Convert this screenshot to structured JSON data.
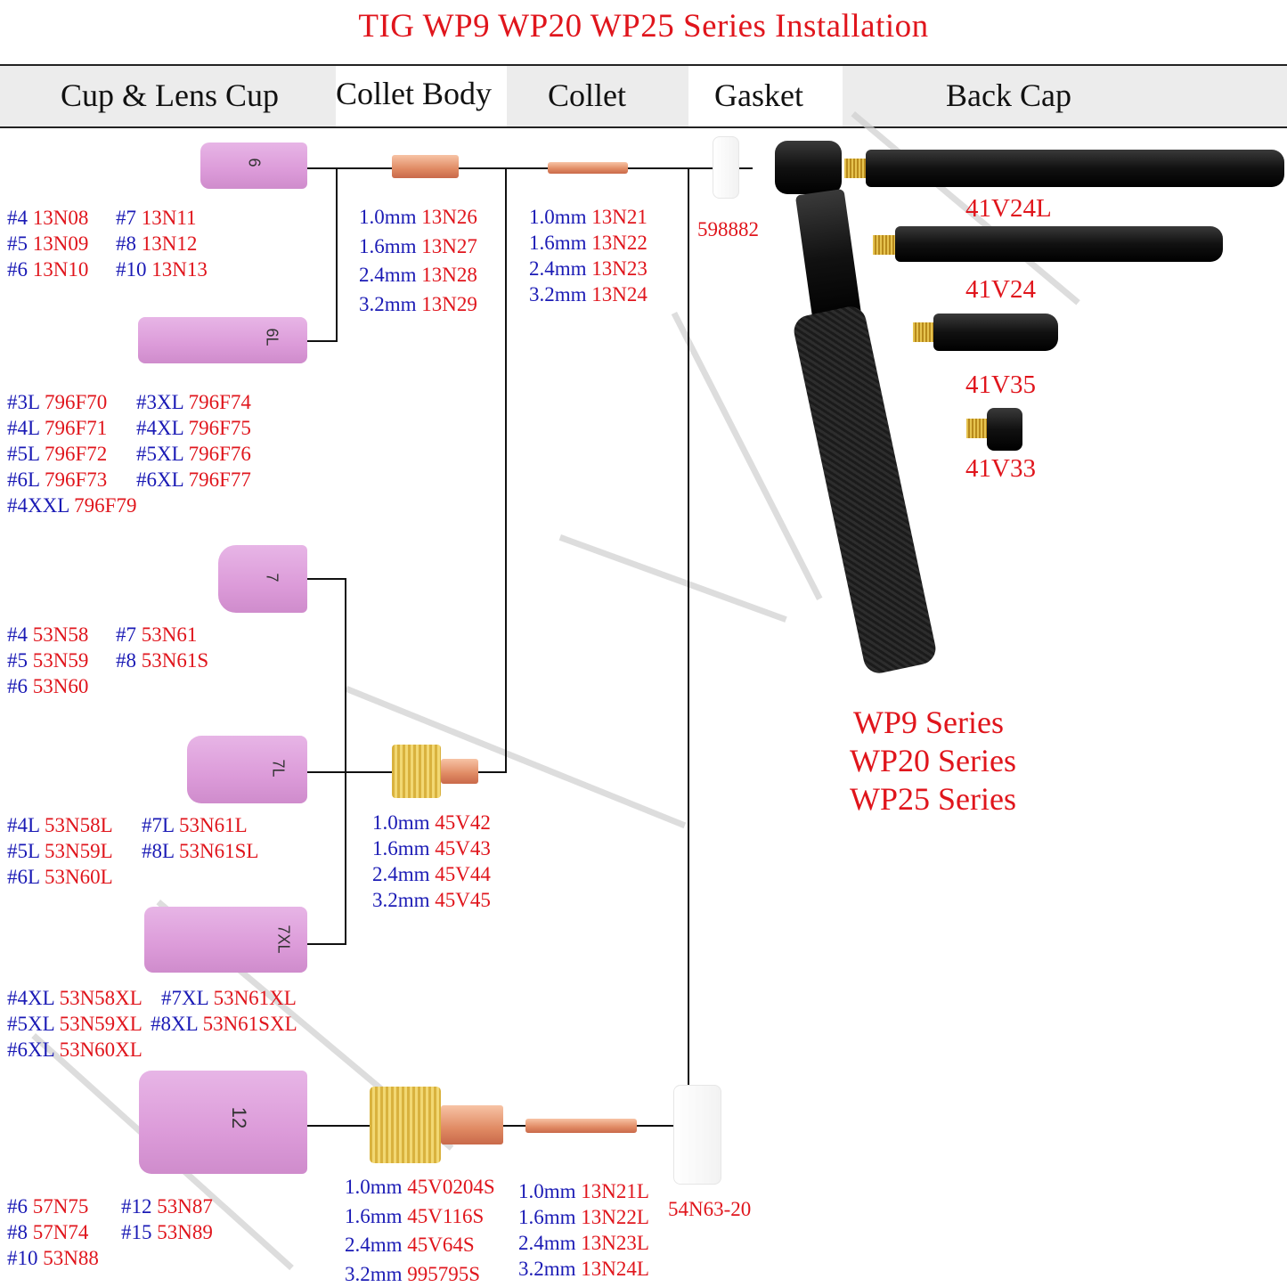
{
  "title": "TIG WP9 WP20 WP25 Series Installation",
  "headers": [
    "Cup & Lens Cup",
    "Collet Body",
    "Collet",
    "Gasket",
    "Back Cap"
  ],
  "colors": {
    "size": "#1a1ab5",
    "part": "#e0151c",
    "cup": "#dc9bd9"
  },
  "cup_markings": [
    "6",
    "6L",
    "7",
    "7L",
    "7XL",
    "12"
  ],
  "groups": {
    "cup13_a": [
      {
        "s": "#4",
        "p": "13N08"
      },
      {
        "s": "#5",
        "p": "13N09"
      },
      {
        "s": "#6",
        "p": "13N10"
      }
    ],
    "cup13_b": [
      {
        "s": "#7",
        "p": "13N11"
      },
      {
        "s": "#8",
        "p": "13N12"
      },
      {
        "s": "#10",
        "p": "13N13"
      }
    ],
    "collet_body_13": [
      {
        "s": "1.0mm",
        "p": "13N26"
      },
      {
        "s": "1.6mm",
        "p": "13N27"
      },
      {
        "s": "2.4mm",
        "p": "13N28"
      },
      {
        "s": "3.2mm",
        "p": "13N29"
      }
    ],
    "collet_13": [
      {
        "s": "1.0mm",
        "p": "13N21"
      },
      {
        "s": "1.6mm",
        "p": "13N22"
      },
      {
        "s": "2.4mm",
        "p": "13N23"
      },
      {
        "s": "3.2mm",
        "p": "13N24"
      }
    ],
    "cup796_a": [
      {
        "s": "#3L",
        "p": "796F70"
      },
      {
        "s": "#4L",
        "p": "796F71"
      },
      {
        "s": "#5L",
        "p": "796F72"
      },
      {
        "s": "#6L",
        "p": "796F73"
      },
      {
        "s": "#4XXL",
        "p": "796F79"
      }
    ],
    "cup796_b": [
      {
        "s": "#3XL",
        "p": "796F74"
      },
      {
        "s": "#4XL",
        "p": "796F75"
      },
      {
        "s": "#5XL",
        "p": "796F76"
      },
      {
        "s": "#6XL",
        "p": "796F77"
      }
    ],
    "cup53_a": [
      {
        "s": "#4",
        "p": "53N58"
      },
      {
        "s": "#5",
        "p": "53N59"
      },
      {
        "s": "#6",
        "p": "53N60"
      }
    ],
    "cup53_b": [
      {
        "s": "#7",
        "p": "53N61"
      },
      {
        "s": "#8",
        "p": "53N61S"
      }
    ],
    "cup53L_a": [
      {
        "s": "#4L",
        "p": "53N58L"
      },
      {
        "s": "#5L",
        "p": "53N59L"
      },
      {
        "s": "#6L",
        "p": "53N60L"
      }
    ],
    "cup53L_b": [
      {
        "s": "#7L",
        "p": "53N61L"
      },
      {
        "s": "#8L",
        "p": "53N61SL"
      }
    ],
    "gas_lens_45": [
      {
        "s": "1.0mm",
        "p": "45V42"
      },
      {
        "s": "1.6mm",
        "p": "45V43"
      },
      {
        "s": "2.4mm",
        "p": "45V44"
      },
      {
        "s": "3.2mm",
        "p": "45V45"
      }
    ],
    "cup53XL_a": [
      {
        "s": "#4XL",
        "p": "53N58XL"
      },
      {
        "s": "#5XL",
        "p": "53N59XL"
      },
      {
        "s": "#6XL",
        "p": "53N60XL"
      }
    ],
    "cup53XL_b": [
      {
        "s": "#7XL",
        "p": "53N61XL"
      },
      {
        "s": "#8XL",
        "p": "53N61SXL"
      }
    ],
    "cup_large_a": [
      {
        "s": "#6",
        "p": "57N75"
      },
      {
        "s": "#8",
        "p": "57N74"
      },
      {
        "s": "#10",
        "p": "53N88"
      }
    ],
    "cup_large_b": [
      {
        "s": "#12",
        "p": "53N87"
      },
      {
        "s": "#15",
        "p": "53N89"
      }
    ],
    "large_gas_lens": [
      {
        "s": "1.0mm",
        "p": "45V0204S"
      },
      {
        "s": "1.6mm",
        "p": "45V116S"
      },
      {
        "s": "2.4mm",
        "p": "45V64S"
      },
      {
        "s": "3.2mm",
        "p": "995795S"
      }
    ],
    "long_collet": [
      {
        "s": "1.0mm",
        "p": "13N21L"
      },
      {
        "s": "1.6mm",
        "p": "13N22L"
      },
      {
        "s": "2.4mm",
        "p": "13N23L"
      },
      {
        "s": "3.2mm",
        "p": "13N24L"
      }
    ]
  },
  "gasket_small": "598882",
  "gasket_large": "54N63-20",
  "back_caps": [
    "41V24L",
    "41V24",
    "41V35",
    "41V33"
  ],
  "series": [
    "WP9 Series",
    "WP20 Series",
    "WP25 Series"
  ]
}
